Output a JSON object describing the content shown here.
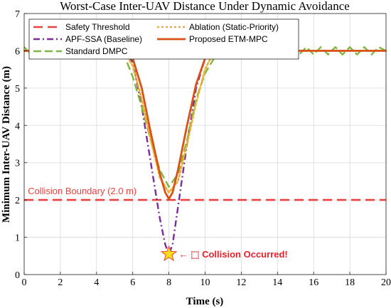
{
  "chart_data": {
    "type": "line",
    "title": "Worst-Case Inter-UAV Distance Under Dynamic Avoidance",
    "xlabel": "Time (s)",
    "ylabel": "Minimum Inter-UAV Distance (m)",
    "xlim": [
      0,
      20
    ],
    "ylim": [
      0,
      7
    ],
    "xticks": [
      "0",
      "2",
      "4",
      "6",
      "8",
      "10",
      "12",
      "14",
      "16",
      "18",
      "20"
    ],
    "yticks": [
      "0",
      "1",
      "2",
      "3",
      "4",
      "5",
      "6",
      "7"
    ],
    "grid": true,
    "legend_position": "top",
    "series": [
      {
        "name": "Safety Threshold",
        "color": "#e8433f",
        "style": "dashed",
        "x": [
          0,
          20
        ],
        "y": [
          2.0,
          2.0
        ]
      },
      {
        "name": "APF-SSA (Baseline)",
        "color": "#7b2d9b",
        "style": "dashdot",
        "x": [
          0,
          5.5,
          6.0,
          6.5,
          7.0,
          7.5,
          7.8,
          8.0,
          8.2,
          8.5,
          9.0,
          9.5,
          10.0,
          10.5,
          20
        ],
        "y": [
          6.0,
          6.0,
          5.7,
          4.5,
          3.0,
          1.5,
          0.8,
          0.55,
          0.8,
          1.8,
          3.5,
          5.0,
          5.8,
          6.0,
          6.0
        ]
      },
      {
        "name": "Standard DMPC",
        "color": "#7fb542",
        "style": "longdash",
        "x": [
          0,
          0.4,
          0.8,
          1.2,
          1.6,
          2.0,
          2.4,
          2.8,
          3.2,
          3.6,
          4.0,
          4.4,
          4.8,
          5.2,
          5.6,
          6.0,
          6.5,
          7.0,
          7.5,
          8.0,
          8.5,
          9.0,
          9.5,
          10.0,
          10.5,
          11.0,
          11.5,
          12.0,
          12.4,
          12.8,
          13.2,
          13.6,
          14.0,
          14.4,
          14.8,
          15.2,
          15.6,
          16.0,
          16.4,
          16.8,
          17.2,
          17.6,
          18.0,
          18.4,
          18.8,
          19.2,
          19.6,
          20.0
        ],
        "y": [
          6.1,
          5.9,
          6.1,
          5.9,
          6.1,
          5.9,
          6.1,
          5.9,
          6.1,
          5.9,
          6.1,
          5.9,
          6.1,
          5.9,
          5.8,
          5.3,
          4.5,
          3.6,
          2.8,
          2.35,
          2.7,
          3.6,
          4.7,
          5.4,
          5.8,
          5.9,
          6.1,
          5.9,
          6.1,
          5.9,
          6.1,
          5.9,
          6.1,
          5.9,
          6.1,
          5.9,
          6.1,
          5.9,
          6.1,
          5.9,
          6.1,
          5.9,
          6.1,
          5.9,
          6.1,
          5.9,
          6.1,
          6.0
        ]
      },
      {
        "name": "Ablation (Static-Priority)",
        "color": "#e8b030",
        "style": "dotted",
        "x": [
          0,
          5.5,
          6.0,
          6.5,
          7.0,
          7.5,
          8.0,
          8.5,
          9.0,
          9.5,
          10.0,
          10.5,
          20
        ],
        "y": [
          6.0,
          6.0,
          5.6,
          4.7,
          3.6,
          2.6,
          2.2,
          2.5,
          3.5,
          4.6,
          5.5,
          6.0,
          6.0
        ]
      },
      {
        "name": "Proposed ETM-MPC",
        "color": "#d95319",
        "style": "solid",
        "x": [
          0,
          5.7,
          6.0,
          6.5,
          7.0,
          7.5,
          7.8,
          8.0,
          8.2,
          8.5,
          9.0,
          9.5,
          10.0,
          10.3,
          20
        ],
        "y": [
          6.0,
          6.0,
          5.8,
          5.0,
          3.8,
          2.7,
          2.2,
          2.03,
          2.2,
          2.8,
          4.0,
          5.1,
          5.8,
          6.0,
          6.0
        ]
      }
    ],
    "annotations": [
      {
        "text": "Collision Boundary (2.0 m)",
        "x": 0.2,
        "y": 2.08,
        "color": "#e8433f"
      },
      {
        "text": "← ⬚ Collision Occurred!",
        "x": 8.55,
        "y": 0.55,
        "color": "#e8202a"
      }
    ],
    "markers": [
      {
        "name": "collision-star",
        "x": 8.0,
        "y": 0.55,
        "fill": "#f7e018",
        "stroke": "#e8433f"
      }
    ]
  }
}
